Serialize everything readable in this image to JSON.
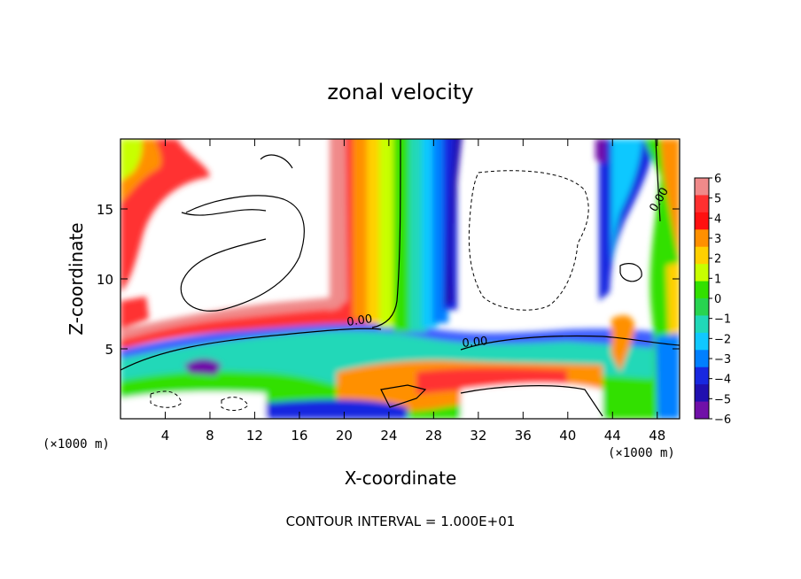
{
  "chart_data": {
    "type": "heatmap",
    "title": "zonal velocity",
    "xlabel": "X-coordinate",
    "ylabel": "Z-coordinate",
    "x_unit": "(×1000 m)",
    "y_unit": "(×1000 m)",
    "xlim": [
      0,
      50
    ],
    "ylim": [
      0,
      20
    ],
    "x_ticks": [
      "4",
      "8",
      "12",
      "16",
      "20",
      "24",
      "28",
      "32",
      "36",
      "40",
      "44",
      "48"
    ],
    "y_ticks": [
      "5",
      "10",
      "15"
    ],
    "x_tick_values": [
      4,
      8,
      12,
      16,
      20,
      24,
      28,
      32,
      36,
      40,
      44,
      48
    ],
    "y_tick_values": [
      5,
      10,
      15
    ],
    "colorbar": {
      "labels": [
        "6",
        "5",
        "4",
        "3",
        "2",
        "1",
        "0",
        "−1",
        "−2",
        "−3",
        "−4",
        "−5",
        "−6"
      ],
      "values": [
        6,
        5,
        4,
        3,
        2,
        1,
        0,
        -1,
        -2,
        -3,
        -4,
        -5,
        -6
      ],
      "colors": [
        "#f08a8a",
        "#ff3030",
        "#ff1010",
        "#ff9000",
        "#ffd000",
        "#c8ff00",
        "#32e000",
        "#28d450",
        "#20d8b8",
        "#10c8ff",
        "#0080ff",
        "#1828e0",
        "#2010b0",
        "#7010a8"
      ]
    },
    "contour_labels": [
      "0.00",
      "0.00",
      "0.00"
    ],
    "footer": "CONTOUR INTERVAL = 1.000E+01",
    "grid": false
  }
}
